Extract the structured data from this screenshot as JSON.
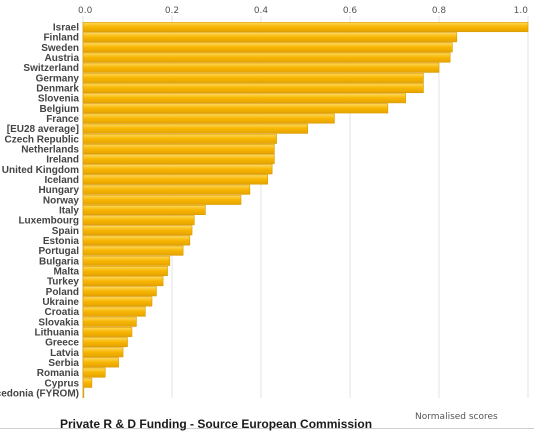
{
  "chart_data": {
    "type": "bar",
    "orientation": "horizontal",
    "categories": [
      "Israel",
      "Finland",
      "Sweden",
      "Austria",
      "Switzerland",
      "Germany",
      "Denmark",
      "Slovenia",
      "Belgium",
      "France",
      "[EU28 average]",
      "Czech Republic",
      "Netherlands",
      "Ireland",
      "United Kingdom",
      "Iceland",
      "Hungary",
      "Norway",
      "Italy",
      "Luxembourg",
      "Spain",
      "Estonia",
      "Portugal",
      "Bulgaria",
      "Malta",
      "Turkey",
      "Poland",
      "Ukraine",
      "Croatia",
      "Slovakia",
      "Lithuania",
      "Greece",
      "Latvia",
      "Serbia",
      "Romania",
      "Cyprus",
      "Macedonia (FYROM)"
    ],
    "values": [
      1.0,
      0.84,
      0.83,
      0.825,
      0.8,
      0.765,
      0.765,
      0.725,
      0.685,
      0.565,
      0.505,
      0.435,
      0.43,
      0.43,
      0.425,
      0.415,
      0.375,
      0.355,
      0.275,
      0.25,
      0.245,
      0.24,
      0.225,
      0.195,
      0.19,
      0.18,
      0.165,
      0.155,
      0.14,
      0.12,
      0.11,
      0.1,
      0.09,
      0.08,
      0.05,
      0.02,
      0.002
    ],
    "xlim": [
      0,
      1
    ],
    "xticks": [
      "0.0",
      "0.2",
      "0.4",
      "0.6",
      "0.8",
      "1.0"
    ],
    "bar_color": "#f7b500",
    "bar_color_light": "#ffd95a",
    "grid": true,
    "x_axis_position": "top",
    "note": "Normalised scores"
  },
  "caption": "Private R & D Funding - Source European Commission"
}
